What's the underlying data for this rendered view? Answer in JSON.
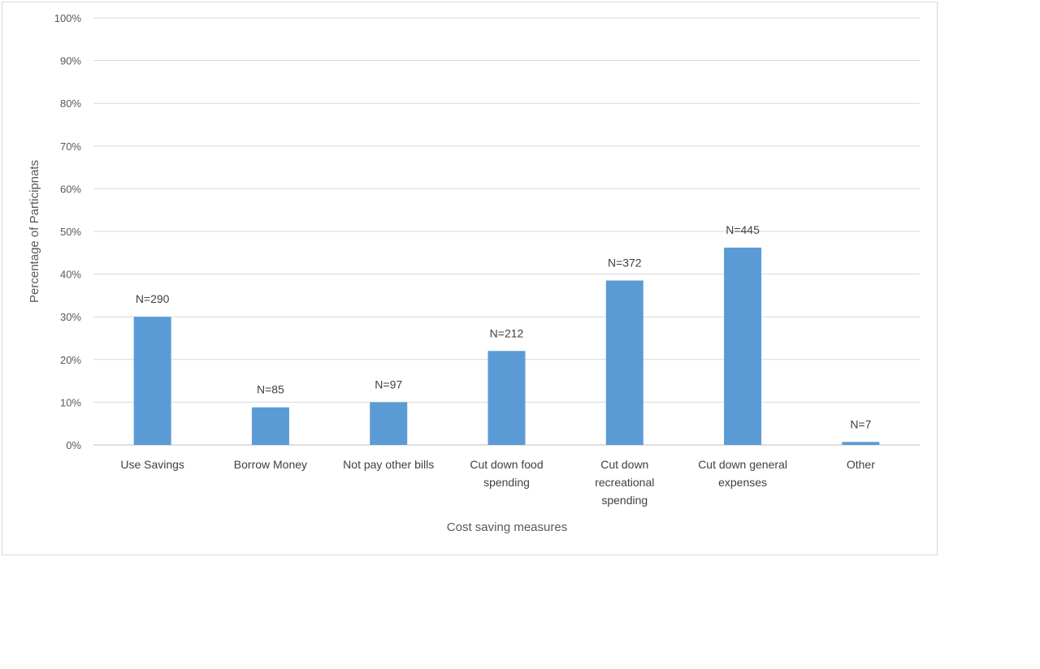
{
  "chart_data": {
    "type": "bar",
    "title": "",
    "xlabel": "Cost saving measures",
    "ylabel": "Percentage of Participnats",
    "ylim": [
      0,
      100
    ],
    "y_ticks": [
      "0%",
      "10%",
      "20%",
      "30%",
      "40%",
      "50%",
      "60%",
      "70%",
      "80%",
      "90%",
      "100%"
    ],
    "grid": true,
    "legend": "none",
    "bar_color": "#5b9bd5",
    "categories": [
      [
        "Use Savings"
      ],
      [
        "Borrow Money"
      ],
      [
        "Not pay other bills"
      ],
      [
        "Cut down food",
        "spending"
      ],
      [
        "Cut down",
        "recreational",
        "spending"
      ],
      [
        "Cut down general",
        "expenses"
      ],
      [
        "Other"
      ]
    ],
    "values": [
      30,
      8.8,
      10,
      22,
      38.5,
      46.2,
      0.7
    ],
    "data_labels": [
      "N=290",
      "N=85",
      "N=97",
      "N=212",
      "N=372",
      "N=445",
      "N=7"
    ]
  }
}
